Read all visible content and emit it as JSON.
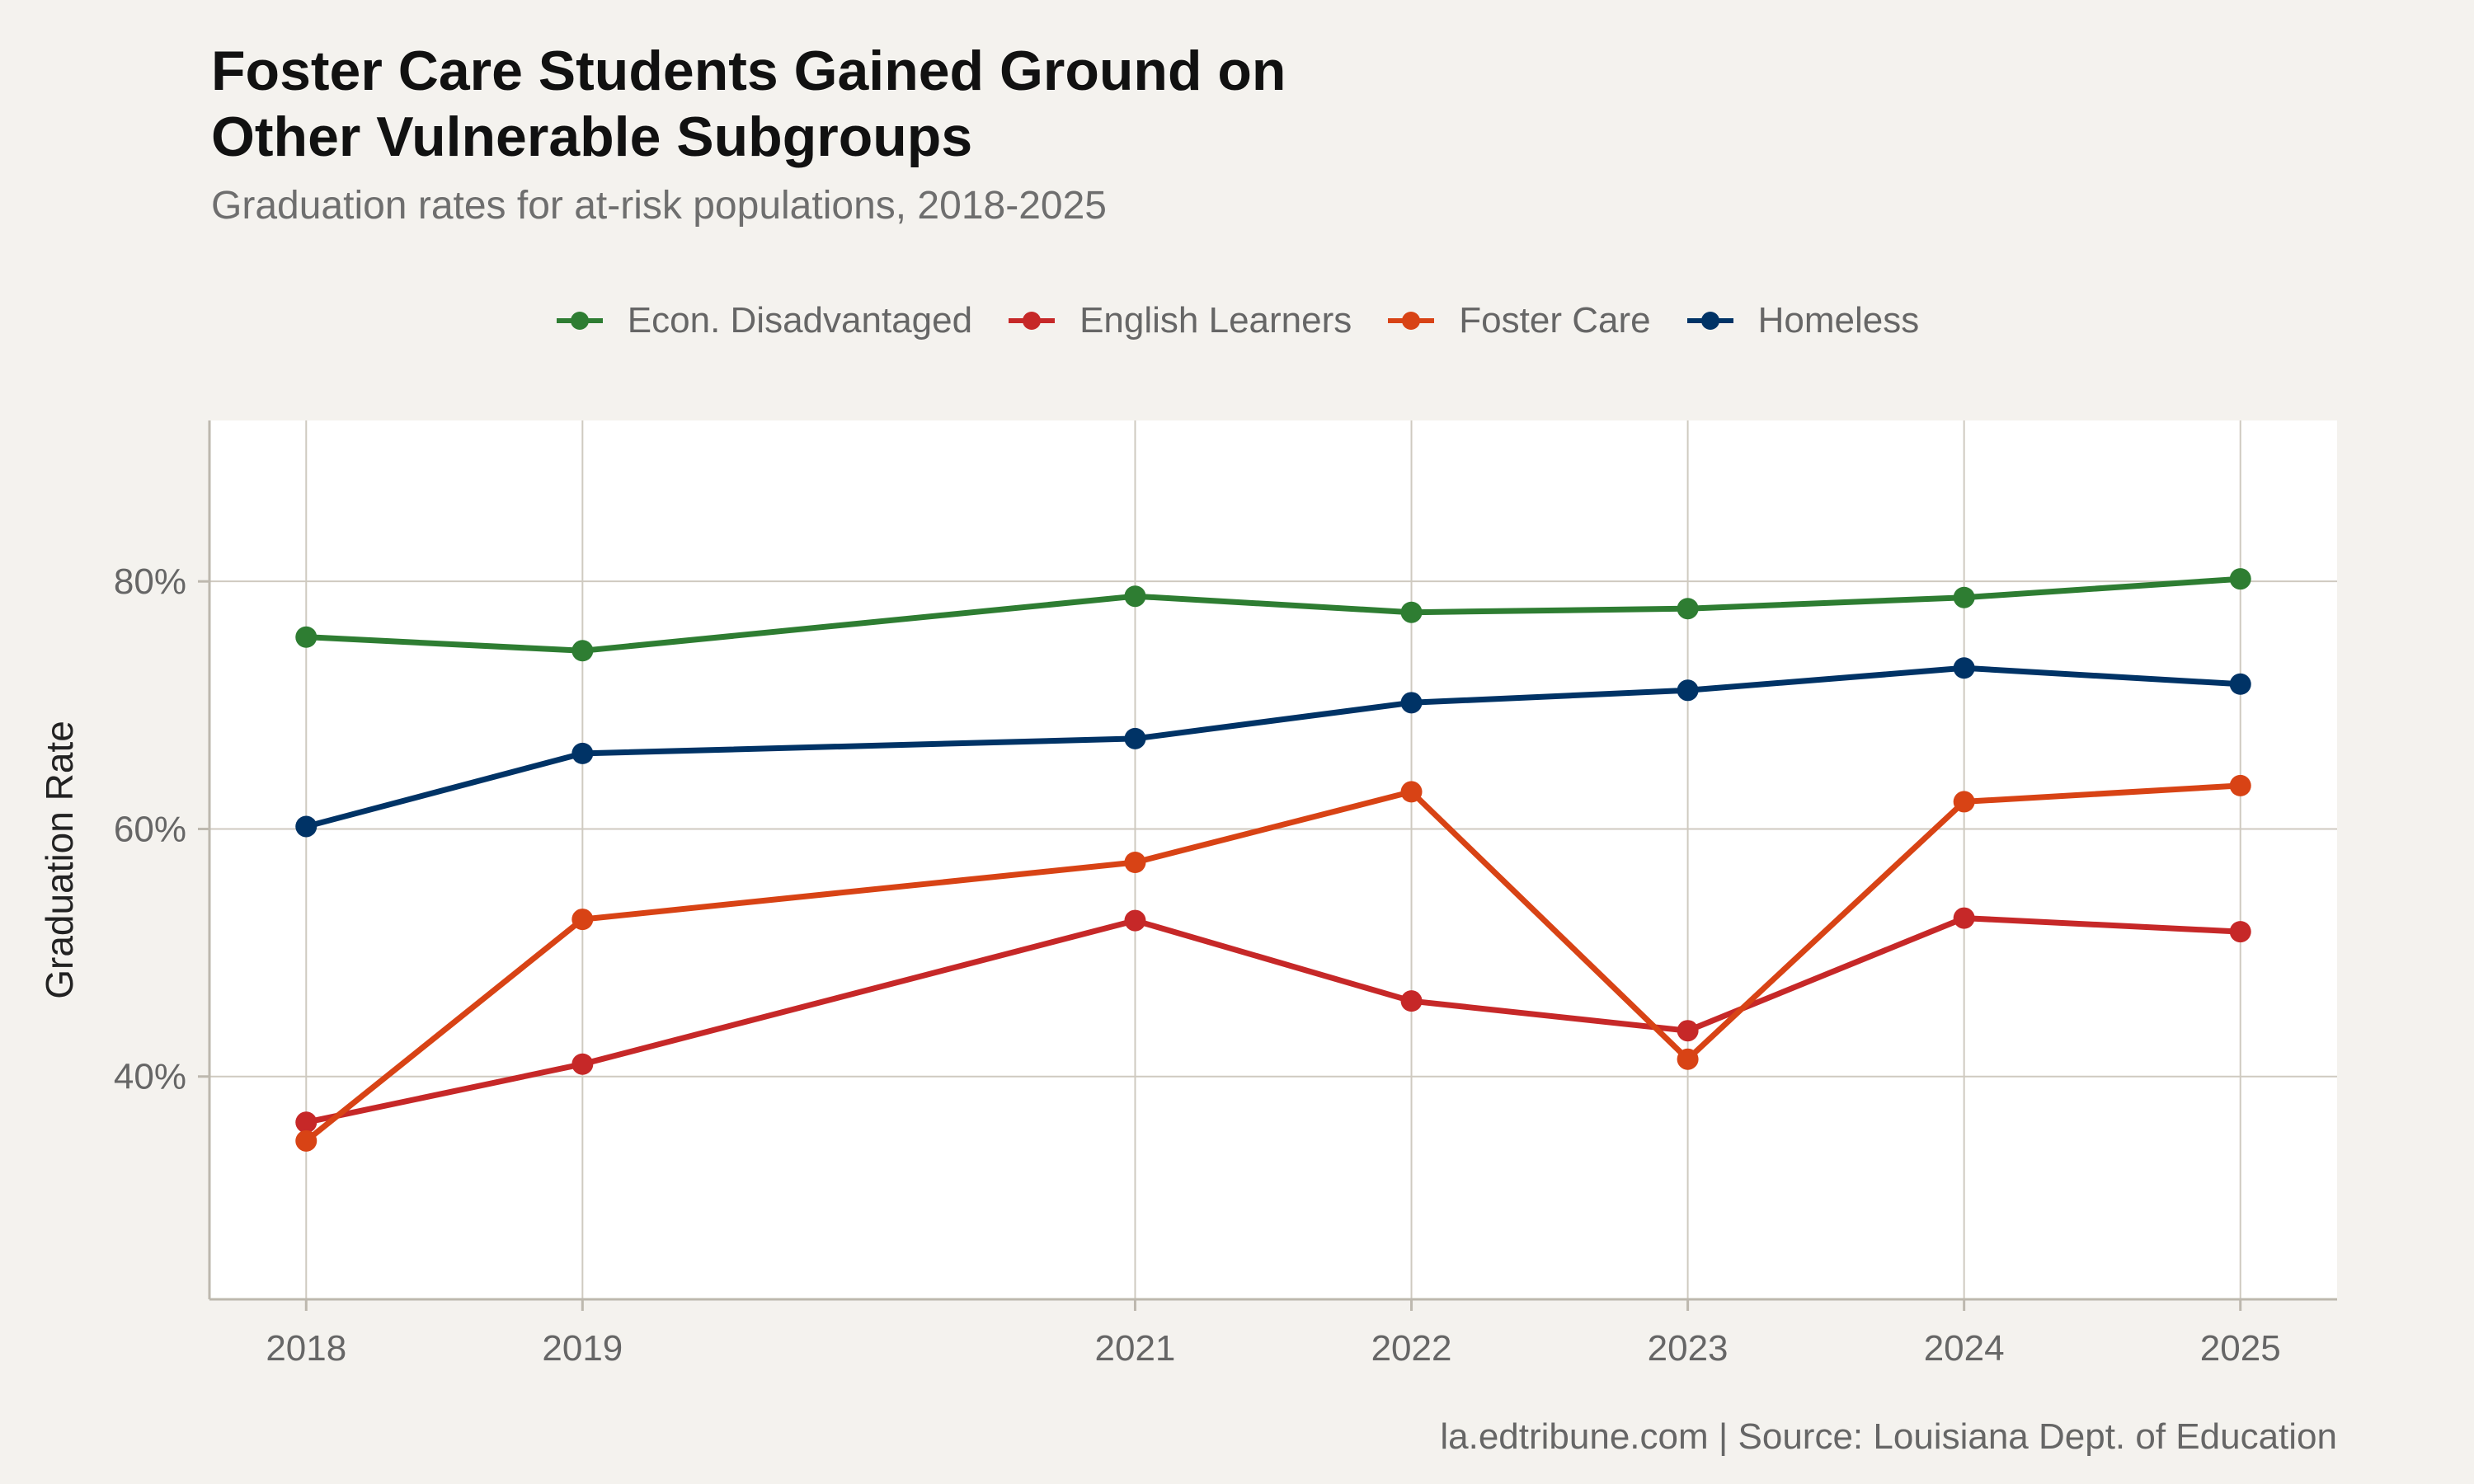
{
  "header": {
    "title_line1": "Foster Care Students Gained Ground on",
    "title_line2": "Other Vulnerable Subgroups",
    "subtitle": "Graduation rates for at-risk populations, 2018-2025"
  },
  "caption": "la.edtribune.com | Source: Louisiana Dept. of Education",
  "chart_data": {
    "type": "line",
    "x": [
      2018,
      2019,
      2021,
      2022,
      2023,
      2024,
      2025
    ],
    "x_tick_labels": [
      "2018",
      "2019",
      "2021",
      "2022",
      "2023",
      "2024",
      "2025"
    ],
    "xlim": [
      2017.65,
      2025.35
    ],
    "ylabel": "Graduation Rate",
    "ylim": [
      22,
      93
    ],
    "y_ticks": [
      40,
      60,
      80
    ],
    "y_tick_labels": [
      "40%",
      "60%",
      "80%"
    ],
    "grid": true,
    "legend_position": "top",
    "series": [
      {
        "name": "Econ. Disadvantaged",
        "color": "#2e7d32",
        "values": [
          75.5,
          74.4,
          78.8,
          77.5,
          77.8,
          78.7,
          80.2
        ]
      },
      {
        "name": "English Learners",
        "color": "#c62828",
        "values": [
          36.3,
          41.0,
          52.6,
          46.1,
          43.7,
          52.8,
          51.7
        ]
      },
      {
        "name": "Foster Care",
        "color": "#d84315",
        "values": [
          34.8,
          52.7,
          57.3,
          63.0,
          41.4,
          62.2,
          63.5
        ]
      },
      {
        "name": "Homeless",
        "color": "#003366",
        "values": [
          60.2,
          66.1,
          67.3,
          70.2,
          71.2,
          73.0,
          71.7
        ]
      }
    ]
  }
}
